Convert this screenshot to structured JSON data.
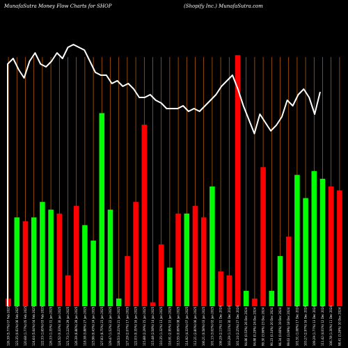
{
  "header": {
    "title_left": "MunafaSutra  Money Flow  Charts for SHOP",
    "title_right": "(Shopify Inc.) MunafaSutra.com"
  },
  "chart_data": {
    "type": "bar",
    "colors": {
      "background": "#000000",
      "up": "#00ff00",
      "down": "#ff0000",
      "grid": "#cc6600",
      "price_line": "#ffffff"
    },
    "categories": [
      "126.39 (5.77%) 07 Feb 2025",
      "123.35 (0.61%) 06 Feb 2025",
      "120.68 (1.77%) 05 Feb 2025",
      "124.64 (5.64%) 04 Feb 2025",
      "122.33 (1.65%) 03 Feb 2025",
      "126.33 (1.35%) 31 Jan 2025",
      "124.52 (0.33%) 30 Jan 2025",
      "121.73 (1.22%) 29 Jan 2025",
      "126.39 (6.86%) 28 Jan 2025",
      "118.38 (3.88%) 27 Jan 2025",
      "123.96 (0.43%) 24 Jan 2025",
      "127.83 (6.75%) 23 Jan 2025",
      "129.47 (1.52%) 22 Jan 2025",
      "128.53 (4.21%) 21 Jan 2025",
      "127.29 (2.07%) 17 Jan 2025",
      "122.03 (0.35%) 16 Jan 2025",
      "115.88 (2.29%) 15 Jan 2025",
      "115.48 (2.58%) 14 Jan 2025",
      "110.35 (1.32%) 13 Jan 2025",
      "116.91 (2.95%) 10 Jan 2025",
      "113.55 (0.69%) 08 Jan 2025",
      "114.92 (4.33%) 07 Jan 2025",
      "112.21 (2.80%) 06 Jan 2025",
      "106.21 (0.58%) 03 Jan 2025",
      "101.13 (3.02%) 02 Jan 2025",
      "106.29 (2.13%) 31 Dec 2024",
      "103.29 (1.11%) 30 Dec 2024",
      "101.14 (2.25%) 27 Dec 2024",
      "94.86 (0.53%) 26 Dec 2024",
      "94.88 (0.29%) 24 Dec 2024",
      "99.30 (3.96%) 23 Dec 2024",
      "90.23 (0.14%) 20 Dec 2024",
      "96.34 (0.66%) 19 Dec 2024",
      "99.63 (3.09%) 18 Dec 2024",
      "101.51 (1.08%) 17 Dec 2024",
      "103.27 (2.97%) 16 Dec 2024",
      "109.29 (1.77%) 13 Dec 2024",
      "111.42 (4.01%) 12 Dec 2024",
      "106.78 (1.30%) 11 Dec 2024",
      "98.41 (3.26%) 10 Dec 2024"
    ],
    "series": [
      {
        "values": [
          2,
          23,
          22,
          23,
          27,
          25,
          24,
          8,
          26,
          21,
          17,
          50,
          25,
          2,
          13,
          27,
          47,
          1,
          16,
          10,
          24,
          24,
          26,
          23,
          31,
          9,
          8,
          65,
          4,
          2,
          36,
          4,
          13,
          18,
          34,
          28,
          35,
          33,
          31,
          30
        ],
        "directions": [
          "down",
          "up",
          "down",
          "up",
          "up",
          "up",
          "down",
          "down",
          "down",
          "up",
          "up",
          "up",
          "up",
          "up",
          "down",
          "down",
          "down",
          "down",
          "down",
          "up",
          "down",
          "up",
          "down",
          "down",
          "up",
          "down",
          "down",
          "down",
          "up",
          "down",
          "down",
          "up",
          "up",
          "down",
          "up",
          "up",
          "up",
          "up",
          "down",
          "down"
        ]
      }
    ],
    "price_line": [
      127,
      129,
      125,
      122,
      128,
      131,
      127,
      126,
      128,
      131,
      129,
      133,
      134,
      133,
      132,
      128,
      124,
      123,
      123,
      120,
      121,
      119,
      120,
      118,
      115,
      115,
      116,
      114,
      113,
      111,
      111,
      111,
      112,
      110,
      111,
      110,
      112,
      114,
      116,
      119,
      121,
      123,
      118,
      112,
      107,
      102,
      109,
      106,
      103,
      105,
      108,
      114,
      112,
      116,
      118,
      115,
      109,
      117
    ],
    "ylim": [
      0,
      140
    ],
    "grid": true,
    "legend": "none"
  }
}
